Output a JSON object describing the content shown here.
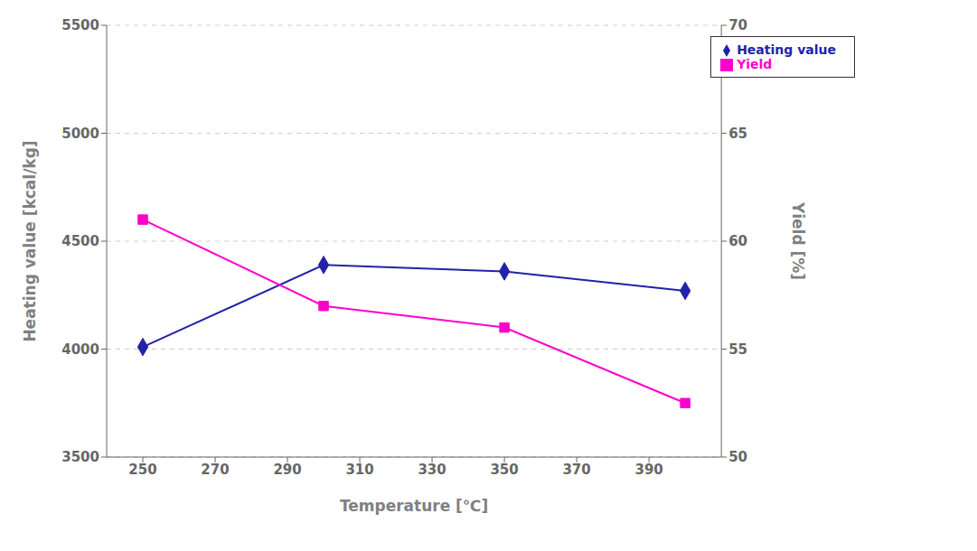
{
  "chart_data": {
    "type": "line",
    "x": [
      250,
      300,
      350,
      400
    ],
    "series": [
      {
        "name": "Heating value",
        "color": "#2222AA",
        "marker": "diamond",
        "values": [
          4010,
          4390,
          4360,
          4270
        ]
      },
      {
        "name": "Yield",
        "color": "#FF00CC",
        "marker": "square",
        "axis": "y2",
        "values": [
          61.0,
          57.0,
          56.0,
          52.5
        ]
      }
    ],
    "x_label": "Temperature [℃]",
    "y_label": "Heating value [kcal/kg]",
    "y2_label": "Yield [%]",
    "xlim": [
      240,
      410
    ],
    "xticks": [
      250,
      270,
      290,
      310,
      330,
      350,
      370,
      390
    ],
    "ylim": [
      3500,
      5500
    ],
    "yticks": [
      3500,
      4000,
      4500,
      5000,
      5500
    ],
    "y2lim": [
      50,
      70
    ],
    "y2ticks": [
      50,
      55,
      60,
      65,
      70
    ],
    "grid": "y",
    "legend": "upper right"
  }
}
